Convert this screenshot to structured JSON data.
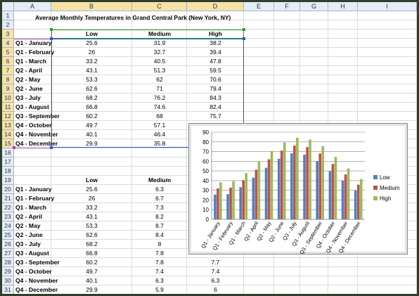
{
  "sheet": {
    "columns": [
      "A",
      "B",
      "C",
      "D",
      "E",
      "F",
      "G",
      "H",
      "I"
    ],
    "rows": [
      "1",
      "2",
      "3",
      "4",
      "5",
      "6",
      "7",
      "8",
      "9",
      "10",
      "11",
      "12",
      "13",
      "14",
      "15",
      "16",
      "17",
      "18",
      "19",
      "20",
      "21",
      "22",
      "23",
      "24",
      "25",
      "26",
      "27",
      "28",
      "29",
      "30",
      "31"
    ],
    "title": "Average Monthly Temperatures in Grand Central Park (New York, NY)",
    "table1": {
      "headers": [
        "Low",
        "Medium",
        "High"
      ],
      "rows": [
        {
          "label": "Q1 - January",
          "low": "25.6",
          "medium": "31.9",
          "high": "38.2"
        },
        {
          "label": "Q1 - February",
          "low": "26",
          "medium": "32.7",
          "high": "39.4"
        },
        {
          "label": "Q1 - March",
          "low": "33.2",
          "medium": "40.5",
          "high": "47.8"
        },
        {
          "label": "Q2 - April",
          "low": "43.1",
          "medium": "51.3",
          "high": "59.5"
        },
        {
          "label": "Q2 - May",
          "low": "53.3",
          "medium": "62",
          "high": "70.6"
        },
        {
          "label": "Q2 - June",
          "low": "62.6",
          "medium": "71",
          "high": "79.4"
        },
        {
          "label": "Q3 - July",
          "low": "68.2",
          "medium": "76.2",
          "high": "84.3"
        },
        {
          "label": "Q3 - August",
          "low": "66.8",
          "medium": "74.6",
          "high": "82.4"
        },
        {
          "label": "Q3 - September",
          "low": "60.2",
          "medium": "68",
          "high": "75.7"
        },
        {
          "label": "Q4 - October",
          "low": "49.7",
          "medium": "57.1",
          "high": ""
        },
        {
          "label": "Q4 - November",
          "low": "40.1",
          "medium": "46.4",
          "high": ""
        },
        {
          "label": "Q4 - December",
          "low": "29.9",
          "medium": "35.8",
          "high": ""
        }
      ]
    },
    "table2": {
      "headers": [
        "Low",
        "Medium"
      ],
      "rows": [
        {
          "label": "Q1 - January",
          "low": "25.6",
          "medium": "6.3",
          "high": ""
        },
        {
          "label": "Q1 - February",
          "low": "26",
          "medium": "6.7",
          "high": ""
        },
        {
          "label": "Q1 - March",
          "low": "33.2",
          "medium": "7.3",
          "high": ""
        },
        {
          "label": "Q2 - April",
          "low": "43.1",
          "medium": "8.2",
          "high": ""
        },
        {
          "label": "Q2 - May",
          "low": "53.3",
          "medium": "8.7",
          "high": ""
        },
        {
          "label": "Q2 - June",
          "low": "62.6",
          "medium": "8.4",
          "high": ""
        },
        {
          "label": "Q3 - July",
          "low": "68.2",
          "medium": "8",
          "high": ""
        },
        {
          "label": "Q3 - August",
          "low": "66.8",
          "medium": "7.8",
          "high": ""
        },
        {
          "label": "Q3 - September",
          "low": "60.2",
          "medium": "7.8",
          "high": "7.7"
        },
        {
          "label": "Q4 - October",
          "low": "49.7",
          "medium": "7.4",
          "high": "7.4"
        },
        {
          "label": "Q4 - November",
          "low": "40.1",
          "medium": "6.3",
          "high": "6.3"
        },
        {
          "label": "Q4 - December",
          "low": "29.9",
          "medium": "5.9",
          "high": "6"
        }
      ]
    }
  },
  "colors": {
    "header_bg": "#e6ecf5",
    "header_highlight": "#f6e2a8",
    "low": "#4f81bd",
    "medium": "#c0504d",
    "high": "#9bbb59"
  },
  "chart_data": {
    "type": "bar",
    "categories": [
      "Q1 - January",
      "Q1 - February",
      "Q1 - March",
      "Q2 - April",
      "Q2 - May",
      "Q2 - June",
      "Q3 - July",
      "Q3 - August",
      "Q3 - September",
      "Q4 - October",
      "Q4 - November",
      "Q4 - December"
    ],
    "series": [
      {
        "name": "Low",
        "values": [
          25.6,
          26,
          33.2,
          43.1,
          53.3,
          62.6,
          68.2,
          66.8,
          60.2,
          49.7,
          40.1,
          29.9
        ]
      },
      {
        "name": "Medium",
        "values": [
          31.9,
          32.7,
          40.5,
          51.3,
          62,
          71,
          76.2,
          74.6,
          68,
          57.1,
          46.4,
          35.8
        ]
      },
      {
        "name": "High",
        "values": [
          38.2,
          39.4,
          47.8,
          59.5,
          70.6,
          79.4,
          84.3,
          82.4,
          75.7,
          64.5,
          52.6,
          41.6
        ]
      }
    ],
    "title": "",
    "xlabel": "",
    "ylabel": "",
    "ylim": [
      0,
      90
    ],
    "yticks": [
      0,
      10,
      20,
      30,
      40,
      50,
      60,
      70,
      80,
      90
    ],
    "grid": true,
    "legend": "right"
  }
}
